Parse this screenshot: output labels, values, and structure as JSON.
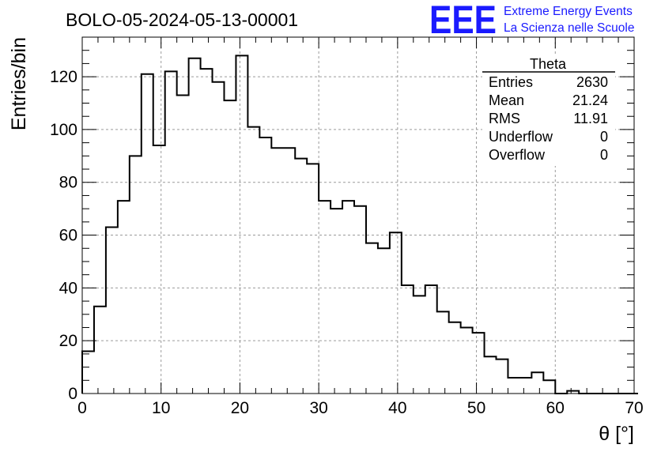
{
  "chart_data": {
    "type": "bar",
    "title": "BOLO-05-2024-05-13-00001",
    "xlabel": "θ [°]",
    "ylabel": "Entries/bin",
    "xlim": [
      0,
      70
    ],
    "ylim": [
      0,
      135
    ],
    "x_ticks": [
      "0",
      "10",
      "20",
      "30",
      "40",
      "50",
      "60",
      "70"
    ],
    "y_ticks": [
      "0",
      "20",
      "40",
      "60",
      "80",
      "100",
      "120"
    ],
    "grid": true,
    "histogram": true,
    "bin_width": 1.5,
    "bin_edges_start": 0,
    "values": [
      16,
      33,
      63,
      73,
      90,
      121,
      94,
      122,
      113,
      127,
      123,
      118,
      111,
      128,
      101,
      97,
      93,
      93,
      89,
      87,
      73,
      70,
      73,
      71,
      57,
      55,
      61,
      41,
      37,
      41,
      31,
      27,
      25,
      23,
      14,
      13,
      6,
      6,
      8,
      5,
      0,
      1,
      0,
      0,
      0,
      0,
      0
    ],
    "stats_box": {
      "title": "Theta",
      "rows": [
        {
          "label": "Entries",
          "value": "2630"
        },
        {
          "label": "Mean",
          "value": "21.24"
        },
        {
          "label": "RMS",
          "value": "11.91"
        },
        {
          "label": "Underflow",
          "value": "0"
        },
        {
          "label": "Overflow",
          "value": "0"
        }
      ]
    }
  },
  "logo": {
    "mark": "EEE",
    "line1": "Extreme Energy Events",
    "line2": "La Scienza nelle Scuole",
    "color": "#1a1aff"
  }
}
